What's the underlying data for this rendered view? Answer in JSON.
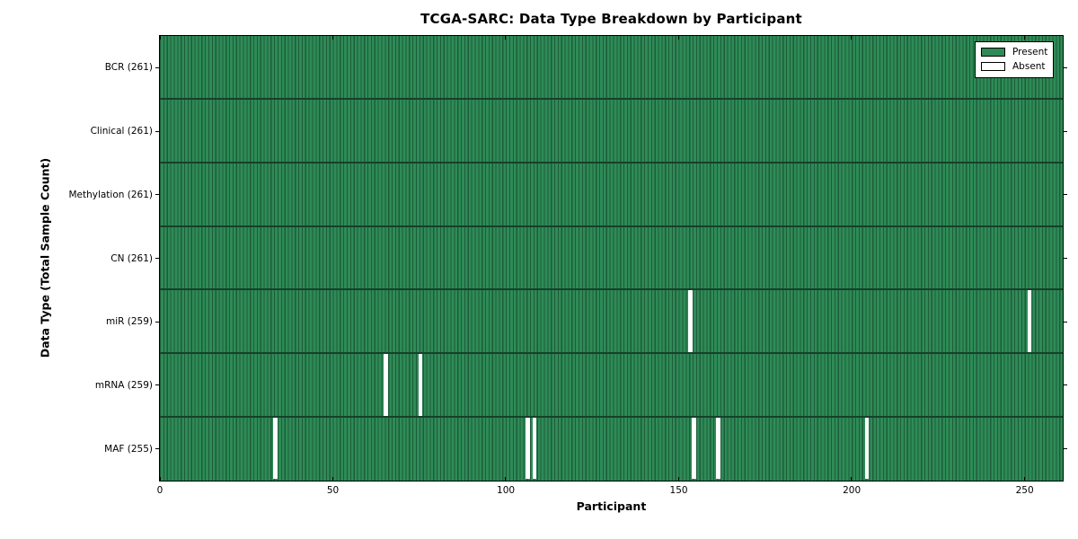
{
  "chart_data": {
    "type": "heatmap",
    "title": "TCGA-SARC: Data Type Breakdown by Participant",
    "xlabel": "Participant",
    "ylabel": "Data Type (Total Sample Count)",
    "x_ticks": [
      0,
      50,
      100,
      150,
      200,
      250
    ],
    "x_range": [
      0,
      261
    ],
    "n_participants": 261,
    "grid": "off",
    "legend_position": "upper right",
    "rows": [
      {
        "name": "BCR",
        "label": "BCR (261)",
        "present_count": 261,
        "absent_participants": []
      },
      {
        "name": "Clinical",
        "label": "Clinical (261)",
        "present_count": 261,
        "absent_participants": []
      },
      {
        "name": "Methylation",
        "label": "Methylation (261)",
        "present_count": 261,
        "absent_participants": []
      },
      {
        "name": "CN",
        "label": "CN (261)",
        "present_count": 261,
        "absent_participants": []
      },
      {
        "name": "miR",
        "label": "miR (259)",
        "present_count": 259,
        "absent_participants": [
          153,
          251
        ]
      },
      {
        "name": "mRNA",
        "label": "mRNA (259)",
        "present_count": 259,
        "absent_participants": [
          65,
          75
        ]
      },
      {
        "name": "MAF",
        "label": "MAF (255)",
        "present_count": 255,
        "absent_participants": [
          33,
          106,
          108,
          154,
          161,
          204
        ]
      }
    ],
    "legend": [
      {
        "label": "Present",
        "color": "#2e8b57"
      },
      {
        "label": "Absent",
        "color": "#ffffff"
      }
    ],
    "colors": {
      "present": "#2e8b57",
      "present_edge": "#1e5c39",
      "absent": "#ffffff",
      "row_divider": "#16402a",
      "axis": "#000000",
      "background": "#ffffff"
    }
  }
}
